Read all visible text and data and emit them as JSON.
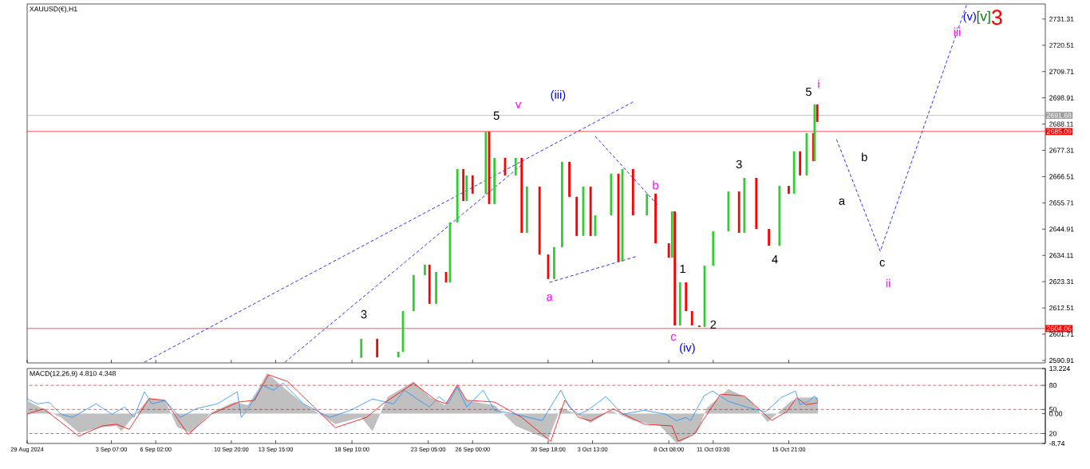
{
  "chart_data": [
    {
      "type": "candlestick",
      "title": "XAUUSD(€),H1",
      "tick_labels": "y",
      "xlim": [
        "2024-08-29T00:00",
        "2024-11-01T00:00"
      ],
      "ylim": [
        2589.9,
        2737.5
      ],
      "xticks": [
        {
          "value": "2024-08-29T00:00",
          "label": null
        },
        {
          "value": "2024-09-03T07:00",
          "label": null
        },
        {
          "value": "2024-09-06T02:00",
          "label": null
        },
        {
          "value": "2024-09-10T20:00",
          "label": null
        },
        {
          "value": "2024-09-13T15:00",
          "label": null
        },
        {
          "value": "2024-09-18T10:00",
          "label": null
        },
        {
          "value": "2024-09-23T05:00",
          "label": null
        },
        {
          "value": "2024-09-26T00:00",
          "label": null
        },
        {
          "value": "2024-09-30T18:00",
          "label": null
        },
        {
          "value": "2024-10-03T13:00",
          "label": null
        },
        {
          "value": "2024-10-08T08:00",
          "label": null
        },
        {
          "value": "2024-10-11T03:00",
          "label": null
        },
        {
          "value": "2024-10-15T21:00",
          "label": null
        }
      ],
      "yticks": [
        2731.31,
        2720.51,
        2709.71,
        2698.91,
        2688.11,
        2677.31,
        2666.51,
        2655.71,
        2644.91,
        2634.11,
        2623.31,
        2612.51,
        2601.71,
        2590.91
      ],
      "x": [
        "2024-09-19T00:00",
        "2024-09-20T00:00",
        "2024-09-21T08:00",
        "2024-09-21T15:00",
        "2024-09-22T07:00",
        "2024-09-23T00:00",
        "2024-09-23T07:00",
        "2024-09-23T17:00",
        "2024-09-24T08:00",
        "2024-09-24T14:00",
        "2024-09-25T01:00",
        "2024-09-25T10:00",
        "2024-09-25T15:00",
        "2024-09-26T00:00",
        "2024-09-26T20:00",
        "2024-09-27T01:00",
        "2024-09-27T09:00",
        "2024-09-28T01:00",
        "2024-09-28T17:00",
        "2024-09-29T02:00",
        "2024-09-29T10:00",
        "2024-09-30T05:00",
        "2024-09-30T18:00",
        "2024-10-01T03:00",
        "2024-10-01T15:00",
        "2024-10-02T02:00",
        "2024-10-02T13:00",
        "2024-10-02T23:00",
        "2024-10-03T10:00",
        "2024-10-03T17:00",
        "2024-10-04T17:00",
        "2024-10-05T04:00",
        "2024-10-05T10:00",
        "2024-10-06T02:00",
        "2024-10-06T23:00",
        "2024-10-07T12:00",
        "2024-10-08T08:00",
        "2024-10-08T13:00",
        "2024-10-08T17:00",
        "2024-10-09T01:00",
        "2024-10-09T10:00",
        "2024-10-09T19:00",
        "2024-10-10T06:00",
        "2024-10-10T14:00",
        "2024-10-11T03:00",
        "2024-10-12T02:00",
        "2024-10-12T18:00",
        "2024-10-13T02:00",
        "2024-10-13T20:00",
        "2024-10-14T15:00",
        "2024-10-15T07:00",
        "2024-10-15T21:00",
        "2024-10-16T05:00",
        "2024-10-16T14:00",
        "2024-10-17T00:00",
        "2024-10-17T10:00",
        "2024-10-17T12:00",
        "2024-10-17T16:00"
      ],
      "ohlc": [
        [
          2592.0,
          2599.8,
          2592.0,
          2599.8
        ],
        [
          2599.8,
          2599.8,
          2592.2,
          2592.2
        ],
        [
          2592.2,
          2594.5,
          2592.2,
          2594.5
        ],
        [
          2594.5,
          2611.2,
          2594.5,
          2611.2
        ],
        [
          2611.2,
          2626.0,
          2611.2,
          2626.0
        ],
        [
          2626.0,
          2630.3,
          2626.0,
          2630.3
        ],
        [
          2630.3,
          2630.3,
          2614.2,
          2614.2
        ],
        [
          2614.2,
          2627.3,
          2614.2,
          2627.3
        ],
        [
          2627.3,
          2627.3,
          2623.0,
          2623.0
        ],
        [
          2623.0,
          2647.7,
          2623.0,
          2647.7
        ],
        [
          2647.7,
          2669.6,
          2647.7,
          2669.6
        ],
        [
          2669.6,
          2669.6,
          2656.5,
          2656.5
        ],
        [
          2656.5,
          2667.0,
          2656.5,
          2667.0
        ],
        [
          2667.0,
          2667.0,
          2659.5,
          2659.5
        ],
        [
          2659.5,
          2685.0,
          2659.5,
          2685.0
        ],
        [
          2685.0,
          2685.0,
          2655.2,
          2655.2
        ],
        [
          2655.2,
          2674.2,
          2655.2,
          2674.2
        ],
        [
          2674.2,
          2674.2,
          2667.0,
          2667.0
        ],
        [
          2667.0,
          2674.2,
          2667.0,
          2674.2
        ],
        [
          2674.2,
          2674.2,
          2643.4,
          2643.4
        ],
        [
          2643.4,
          2662.4,
          2643.4,
          2662.4
        ],
        [
          2662.4,
          2662.4,
          2634.5,
          2634.5
        ],
        [
          2634.5,
          2634.5,
          2624.4,
          2624.4
        ],
        [
          2624.4,
          2637.5,
          2624.4,
          2637.5
        ],
        [
          2637.5,
          2672.6,
          2637.5,
          2672.6
        ],
        [
          2672.6,
          2672.6,
          2658.2,
          2658.2
        ],
        [
          2658.2,
          2658.2,
          2642.1,
          2642.1
        ],
        [
          2642.1,
          2662.4,
          2642.1,
          2662.4
        ],
        [
          2662.4,
          2662.4,
          2642.1,
          2642.1
        ],
        [
          2642.1,
          2650.6,
          2642.1,
          2650.6
        ],
        [
          2650.6,
          2667.7,
          2650.6,
          2667.7
        ],
        [
          2667.7,
          2667.7,
          2631.6,
          2631.6
        ],
        [
          2631.6,
          2669.6,
          2631.6,
          2669.6
        ],
        [
          2669.6,
          2669.6,
          2650.6,
          2650.6
        ],
        [
          2650.6,
          2659.5,
          2650.6,
          2659.5
        ],
        [
          2659.5,
          2659.5,
          2639.1,
          2639.1
        ],
        [
          2639.1,
          2639.1,
          2633.2,
          2633.2
        ],
        [
          2633.2,
          2652.2,
          2633.2,
          2652.2
        ],
        [
          2652.2,
          2652.2,
          2605.3,
          2605.3
        ],
        [
          2605.3,
          2623.0,
          2605.3,
          2623.0
        ],
        [
          2623.0,
          2623.0,
          2611.2,
          2611.2
        ],
        [
          2611.2,
          2611.2,
          2605.3,
          2605.3
        ],
        [
          2605.3,
          2605.3,
          2604.7,
          2604.7
        ],
        [
          2604.7,
          2629.9,
          2604.7,
          2629.9
        ],
        [
          2629.9,
          2644.0,
          2629.9,
          2644.0
        ],
        [
          2644.0,
          2660.4,
          2644.0,
          2660.4
        ],
        [
          2660.4,
          2660.4,
          2643.4,
          2643.4
        ],
        [
          2643.4,
          2666.0,
          2643.4,
          2666.0
        ],
        [
          2666.0,
          2666.0,
          2645.0,
          2645.0
        ],
        [
          2645.0,
          2645.0,
          2638.1,
          2638.1
        ],
        [
          2638.1,
          2662.7,
          2638.1,
          2662.7
        ],
        [
          2662.7,
          2662.7,
          2659.5,
          2659.5
        ],
        [
          2659.5,
          2676.9,
          2659.5,
          2676.9
        ],
        [
          2676.9,
          2676.9,
          2667.0,
          2667.0
        ],
        [
          2667.0,
          2684.4,
          2667.0,
          2684.4
        ],
        [
          2684.4,
          2684.4,
          2672.9,
          2672.9
        ],
        [
          2672.9,
          2696.2,
          2672.9,
          2696.2
        ],
        [
          2696.2,
          2696.2,
          2689.0,
          2689.0
        ]
      ],
      "colors": [
        "#32cd32",
        "#ff0000",
        "#32cd32",
        "#32cd32",
        "#32cd32",
        "#32cd32",
        "#ff0000",
        "#32cd32",
        "#ff0000",
        "#32cd32",
        "#32cd32",
        "#ff0000",
        "#32cd32",
        "#ff0000",
        "#32cd32",
        "#ff0000",
        "#32cd32",
        "#ff0000",
        "#32cd32",
        "#ff0000",
        "#32cd32",
        "#ff0000",
        "#ff0000",
        "#32cd32",
        "#32cd32",
        "#ff0000",
        "#ff0000",
        "#32cd32",
        "#ff0000",
        "#32cd32",
        "#32cd32",
        "#ff0000",
        "#32cd32",
        "#ff0000",
        "#32cd32",
        "#ff0000",
        "#ff0000",
        "#32cd32",
        "#ff0000",
        "#32cd32",
        "#ff0000",
        "#ff0000",
        "#ff0000",
        "#32cd32",
        "#32cd32",
        "#32cd32",
        "#ff0000",
        "#32cd32",
        "#ff0000",
        "#ff0000",
        "#32cd32",
        "#ff0000",
        "#32cd32",
        "#ff0000",
        "#32cd32",
        "#ff0000",
        "#32cd32",
        "#ff0000"
      ],
      "series": [
        {
          "type": "line",
          "color": "#0000ff",
          "line_style": "dashed",
          "x": [
            "2024-09-05T09:00",
            "2024-10-06T02:00"
          ],
          "values": [
            2590.2,
            2697.2
          ]
        },
        {
          "type": "line",
          "color": "#0000ff",
          "line_style": "dashed",
          "x": [
            "2024-09-14T05:00",
            "2024-09-29T02:00"
          ],
          "values": [
            2590.2,
            2671.3
          ]
        },
        {
          "type": "line",
          "color": "#0000ff",
          "line_style": "dashed",
          "x": [
            "2024-10-03T17:00",
            "2024-10-07T15:00"
          ],
          "values": [
            2683.1,
            2654.9
          ]
        },
        {
          "type": "line",
          "color": "#0000ff",
          "line_style": "dashed",
          "x": [
            "2024-09-30T20:00",
            "2024-10-06T06:00"
          ],
          "values": [
            2623.0,
            2633.6
          ]
        },
        {
          "type": "line",
          "color": "#0000ff",
          "line_style": "dashed",
          "x": [
            "2024-10-18T21:00",
            "2024-10-21T15:00",
            "2024-10-27T01:00"
          ],
          "values": [
            2681.8,
            2635.8,
            2737.0
          ]
        }
      ],
      "ref_lines": [
        {
          "axis": "y",
          "value": 2691.68,
          "label": "2691.68",
          "color": "#a0a0a0"
        },
        {
          "axis": "y",
          "value": 2685.09,
          "label": "2685.09",
          "color": "#ff0000"
        },
        {
          "axis": "y",
          "value": 2604.06,
          "label": "2604.06",
          "color": "#ff0000"
        }
      ],
      "annotations": [
        {
          "text": "5",
          "x": "2024-09-27T12:00",
          "y": 2691.6
        },
        "v",
        "(iii)",
        "3",
        "a",
        "b",
        "c",
        "(iv)",
        "1",
        "2",
        "3",
        "4",
        "5",
        "i",
        "a",
        "b",
        "c",
        "ii",
        {
          "text": "iii",
          "x": "2024-10-26T11:00",
          "y": 2726.1
        },
        "(v)",
        "[v]",
        "3"
      ]
    },
    {
      "type": "line",
      "title": "MACD(12,26,9) 4.810 4.348",
      "xlim": [
        "2024-08-29T00:00",
        "2024-11-01T00:00"
      ],
      "ylim": [
        -8.74,
        13.224
      ],
      "y2lim": [
        7.6,
        101
      ],
      "xticks": [
        {
          "value": "2024-08-29T00:00",
          "label": "29 Aug 2024"
        },
        {
          "value": "2024-09-03T07:00",
          "label": "3 Sep 07:00"
        },
        {
          "value": "2024-09-06T02:00",
          "label": "6 Sep 02:00"
        },
        {
          "value": "2024-09-10T20:00",
          "label": "10 Sep 20:00"
        },
        {
          "value": "2024-09-13T15:00",
          "label": "13 Sep 15:00"
        },
        {
          "value": "2024-09-18T10:00",
          "label": "18 Sep 10:00"
        },
        {
          "value": "2024-09-23T05:00",
          "label": "23 Sep 05:00"
        },
        {
          "value": "2024-09-26T00:00",
          "label": "26 Sep 00:00"
        },
        {
          "value": "2024-09-30T18:00",
          "label": "30 Sep 18:00"
        },
        {
          "value": "2024-10-03T13:00",
          "label": "3 Oct 13:00"
        },
        {
          "value": "2024-10-08T08:00",
          "label": "8 Oct 08:00"
        },
        {
          "value": "2024-10-11T03:00",
          "label": "11 Oct 03:00"
        },
        {
          "value": "2024-10-15T21:00",
          "label": "15 Oct 21:00"
        }
      ],
      "yticks": [
        13.224,
        {
          "value": 0,
          "label": "0.00"
        },
        -8.74
      ],
      "y2ticks": [
        80,
        50,
        20
      ],
      "series": [
        {
          "type": "area",
          "color": "#c0c0c0",
          "x": [
            "2024-08-29T00:00",
            "2024-08-30T01:00",
            "2024-08-31T03:00",
            "2024-09-01T06:00",
            "2024-09-02T17:00",
            "2024-09-03T15:00",
            "2024-09-03T22:00",
            "2024-09-04T17:00",
            "2024-09-05T16:00",
            "2024-09-06T16:00",
            "2024-09-07T11:00",
            "2024-09-08T07:00",
            "2024-09-09T14:00",
            "2024-09-11T01:00",
            "2024-09-11T21:00",
            "2024-09-12T12:00",
            "2024-09-13T02:00",
            "2024-09-14T02:00",
            "2024-09-15T09:00",
            "2024-09-17T09:00",
            "2024-09-19T00:00",
            "2024-09-19T17:00",
            "2024-09-20T16:00",
            "2024-09-22T07:00",
            "2024-09-23T07:00",
            "2024-09-24T06:00",
            "2024-09-25T01:00",
            "2024-09-25T15:00",
            "2024-09-27T09:00",
            "2024-09-28T17:00",
            "2024-09-30T18:00",
            "2024-10-01T13:00",
            "2024-10-02T11:00",
            "2024-10-03T10:00",
            "2024-10-04T17:00",
            "2024-10-06T02:00",
            "2024-10-07T19:00",
            "2024-10-08T19:00",
            "2024-10-09T04:00",
            "2024-10-09T19:00",
            "2024-10-10T03:00",
            "2024-10-10T17:00",
            "2024-10-12T02:00",
            "2024-10-13T09:00",
            "2024-10-14T13:00",
            "2024-10-16T00:00",
            "2024-10-16T14:00",
            "2024-10-17T17:00"
          ],
          "values": [
            3.8,
            1.3,
            -1.1,
            -5.6,
            -4.0,
            -3.6,
            -5.2,
            -0.7,
            4.5,
            3.8,
            -4.0,
            -5.6,
            0.4,
            3.4,
            2.5,
            7.0,
            11.9,
            7.8,
            2.9,
            -3.1,
            -1.1,
            -5.2,
            4.9,
            9.4,
            4.9,
            2.5,
            8.3,
            3.8,
            2.5,
            -3.6,
            -7.6,
            1.8,
            0.0,
            -2.7,
            0.9,
            -2.0,
            -3.6,
            -8.5,
            -8.1,
            -6.1,
            -5.6,
            1.6,
            7.2,
            4.3,
            -2.5,
            3.6,
            4.7,
            4.8
          ]
        },
        {
          "type": "line",
          "color": "#ff0000",
          "x": [
            "2024-08-29T00:00",
            "2024-08-30T01:00",
            "2024-09-01T06:00",
            "2024-09-02T17:00",
            "2024-09-03T15:00",
            "2024-09-04T10:00",
            "2024-09-05T16:00",
            "2024-09-06T16:00",
            "2024-09-08T03:00",
            "2024-09-09T14:00",
            "2024-09-11T07:00",
            "2024-09-12T07:00",
            "2024-09-13T04:00",
            "2024-09-14T09:00",
            "2024-09-17T09:00",
            "2024-09-19T08:00",
            "2024-09-20T09:00",
            "2024-09-22T07:00",
            "2024-09-23T17:00",
            "2024-09-24T08:00",
            "2024-09-25T01:00",
            "2024-09-25T15:00",
            "2024-09-27T09:00",
            "2024-09-29T02:00",
            "2024-09-30T22:00",
            "2024-10-01T19:00",
            "2024-10-02T16:00",
            "2024-10-03T10:00",
            "2024-10-04T20:00",
            "2024-10-06T19:00",
            "2024-10-08T13:00",
            "2024-10-08T22:00",
            "2024-10-09T22:00",
            "2024-10-10T17:00",
            "2024-10-11T14:00",
            "2024-10-13T02:00",
            "2024-10-14T19:00",
            "2024-10-15T18:00",
            "2024-10-16T09:00",
            "2024-10-16T23:00",
            "2024-10-17T17:00"
          ],
          "values": [
            -0.1,
            1.4,
            -6.6,
            -3.6,
            -3.1,
            -4.6,
            4.4,
            3.9,
            -6.1,
            -0.1,
            3.4,
            3.9,
            11.4,
            9.4,
            -4.1,
            -1.1,
            2.9,
            8.9,
            3.9,
            2.9,
            8.4,
            3.9,
            3.4,
            -1.1,
            -8.1,
            3.9,
            -1.1,
            -2.1,
            1.4,
            -3.1,
            -3.6,
            -8.1,
            -6.1,
            -0.4,
            5.7,
            5.2,
            -2.0,
            0.6,
            4.7,
            2.6,
            3.2
          ]
        },
        {
          "type": "line",
          "color": "#1e90ff",
          "axis": "y2",
          "x": [
            "2024-08-29T00:00",
            "2024-08-29T16:00",
            "2024-08-30T09:00",
            "2024-08-31T03:00",
            "2024-08-31T20:00",
            "2024-09-02T08:00",
            "2024-09-03T08:00",
            "2024-09-04T03:00",
            "2024-09-04T17:00",
            "2024-09-05T09:00",
            "2024-09-05T20:00",
            "2024-09-06T16:00",
            "2024-09-07T15:00",
            "2024-09-08T15:00",
            "2024-09-09T23:00",
            "2024-09-11T05:00",
            "2024-09-11T11:00",
            "2024-09-11T21:00",
            "2024-09-12T09:00",
            "2024-09-12T19:00",
            "2024-09-13T12:00",
            "2024-09-14T02:00",
            "2024-09-15T09:00",
            "2024-09-17T00:00",
            "2024-09-18T08:00",
            "2024-09-19T17:00",
            "2024-09-21T01:00",
            "2024-09-21T17:00",
            "2024-09-22T16:00",
            "2024-09-23T07:00",
            "2024-09-23T21:00",
            "2024-09-24T11:00",
            "2024-09-25T01:00",
            "2024-09-25T15:00",
            "2024-09-26T16:00",
            "2024-09-27T09:00",
            "2024-09-28T17:00",
            "2024-09-30T09:00",
            "2024-10-01T13:00",
            "2024-10-02T02:00",
            "2024-10-02T16:00",
            "2024-10-03T06:00",
            "2024-10-04T09:00",
            "2024-10-05T10:00",
            "2024-10-06T19:00",
            "2024-10-08T04:00",
            "2024-10-08T19:00",
            "2024-10-09T10:00",
            "2024-10-09T17:00",
            "2024-10-10T13:00",
            "2024-10-11T02:00",
            "2024-10-12T02:00",
            "2024-10-13T09:00",
            "2024-10-14T10:00",
            "2024-10-15T10:00",
            "2024-10-16T07:00",
            "2024-10-16T14:00",
            "2024-10-17T03:00",
            "2024-10-17T12:00",
            "2024-10-17T17:00"
          ],
          "values": [
            63,
            57,
            59,
            44,
            40,
            57,
            44,
            53,
            40,
            72,
            57,
            61,
            40,
            51,
            57,
            72,
            40,
            51,
            66,
            80,
            74,
            83,
            57,
            40,
            49,
            63,
            57,
            74,
            61,
            53,
            66,
            57,
            78,
            53,
            74,
            49,
            44,
            36,
            74,
            53,
            44,
            49,
            66,
            44,
            49,
            44,
            36,
            40,
            36,
            67,
            73,
            60,
            52,
            47,
            65,
            73,
            56,
            60,
            67,
            60
          ]
        }
      ],
      "ref_lines": [
        {
          "axis": "y2",
          "value": 80,
          "color": "#ff0000",
          "line_style": "dashed"
        },
        {
          "axis": "y2",
          "value": 50,
          "color": "#ff0000",
          "line_style": "dashed"
        },
        {
          "axis": "y2",
          "value": 20,
          "color": "#ff0000",
          "line_style": "dashed"
        }
      ]
    }
  ]
}
